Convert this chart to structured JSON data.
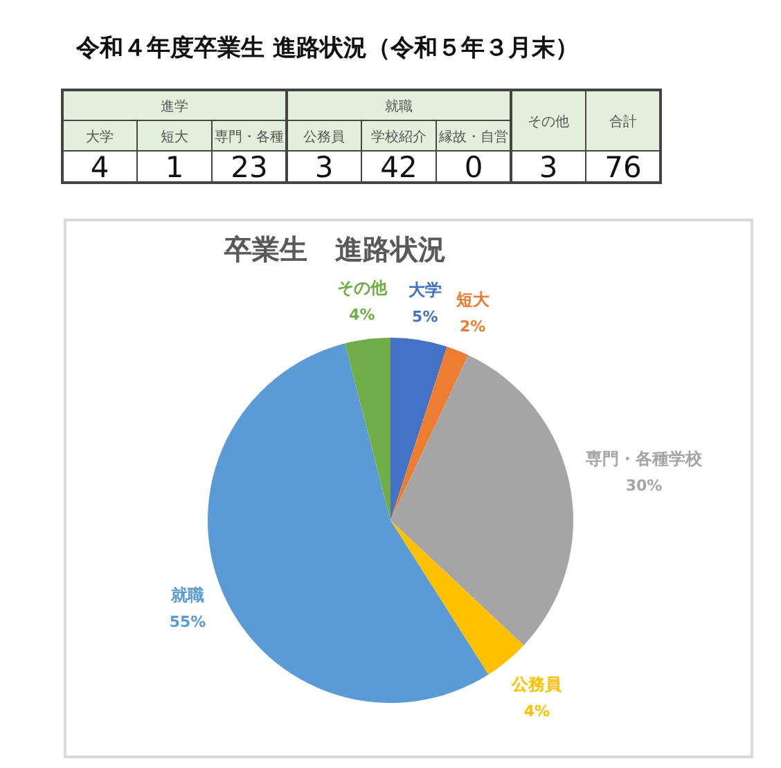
{
  "chart_data": [
    {
      "type": "other",
      "title": "令和４年度卒業生 進路状況（令和５年３月末）"
    },
    {
      "type": "other",
      "title": "進学",
      "categories": [
        "大学",
        "短大",
        "専門・各種"
      ],
      "values": [
        4,
        1,
        23
      ],
      "data_labels": true
    },
    {
      "type": "other",
      "title": "就職",
      "categories": [
        "公務員",
        "学校紹介",
        "縁故・自営"
      ],
      "values": [
        3,
        42,
        0
      ],
      "data_labels": true
    },
    {
      "type": "other",
      "categories": [
        "その他",
        "合計"
      ],
      "values": [
        3,
        76
      ],
      "data_labels": true
    },
    {
      "type": "pie",
      "title": "卒業生　進路状況",
      "categories": [
        "大学",
        "短大",
        "専門・各種学校",
        "公務員",
        "就職",
        "その他"
      ],
      "values": [
        5,
        2,
        30,
        4,
        55,
        4
      ],
      "colors": [
        "#4472c4",
        "#ed7d31",
        "#a5a5a5",
        "#ffc000",
        "#5b9bd5",
        "#70ad47"
      ],
      "value_labels": [
        "5%",
        "2%",
        "30%",
        "4%",
        "55%",
        "4%"
      ]
    }
  ]
}
